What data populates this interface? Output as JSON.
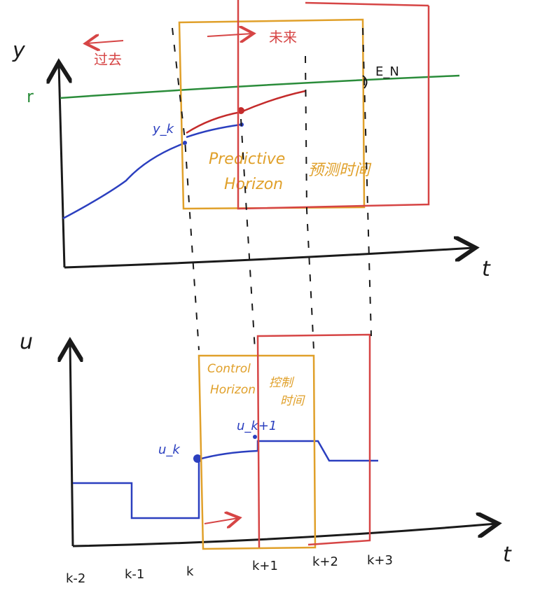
{
  "top_chart": {
    "y_axis_label": "y",
    "t_axis_label": "t",
    "reference_label": "r",
    "output_label": "y_k",
    "error_label": "E_N",
    "past_label": "过去",
    "future_label": "未来",
    "predictive_horizon_label_1": "Predictive",
    "predictive_horizon_label_2": "Horizon",
    "predictive_horizon_cn": "预测时间"
  },
  "bottom_chart": {
    "u_axis_label": "u",
    "t_axis_label": "t",
    "control_horizon_label_1": "Control",
    "control_horizon_label_2": "Horizon",
    "control_horizon_cn_1": "控制",
    "control_horizon_cn_2": "时间",
    "u_k_label": "u_k",
    "u_k1_label": "u_k+1",
    "ticks": [
      "k-2",
      "k-1",
      "k",
      "k+1",
      "k+2",
      "k+3"
    ]
  },
  "colors": {
    "axis": "#1a1a1a",
    "reference": "#2a8c3a",
    "past_output": "#2b3fbf",
    "predicted_output": "#c42b2b",
    "orange_window": "#e0a02a",
    "red_window": "#d64545"
  }
}
